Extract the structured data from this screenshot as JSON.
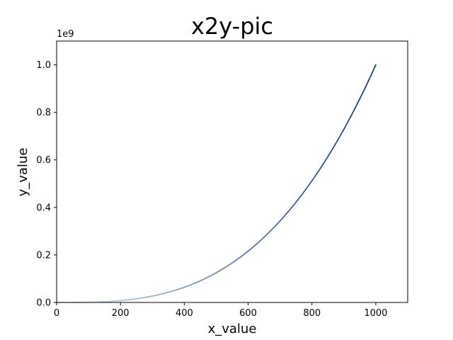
{
  "chart_data": {
    "type": "scatter",
    "title": "x2y-pic",
    "xlabel": "x_value",
    "ylabel": "y_value",
    "y_offset_label": "1e9",
    "xlim": [
      0,
      1100
    ],
    "ylim": [
      0,
      1.1
    ],
    "y_scale_factor": 1000000000,
    "x_ticks": [
      0,
      200,
      400,
      600,
      800,
      1000
    ],
    "x_tick_labels": [
      "0",
      "200",
      "400",
      "600",
      "800",
      "1000"
    ],
    "y_ticks": [
      0.0,
      0.2,
      0.4,
      0.6,
      0.8,
      1.0
    ],
    "y_tick_labels": [
      "0.0",
      "0.2",
      "0.4",
      "0.6",
      "0.8",
      "1.0"
    ],
    "series": [
      {
        "function": "y = x^3",
        "x_start": 1,
        "x_end": 1000,
        "colormap": "Blues",
        "color_low": "#e0ecf8",
        "color_high": "#08306b"
      }
    ],
    "grid": false,
    "legend": "none"
  }
}
